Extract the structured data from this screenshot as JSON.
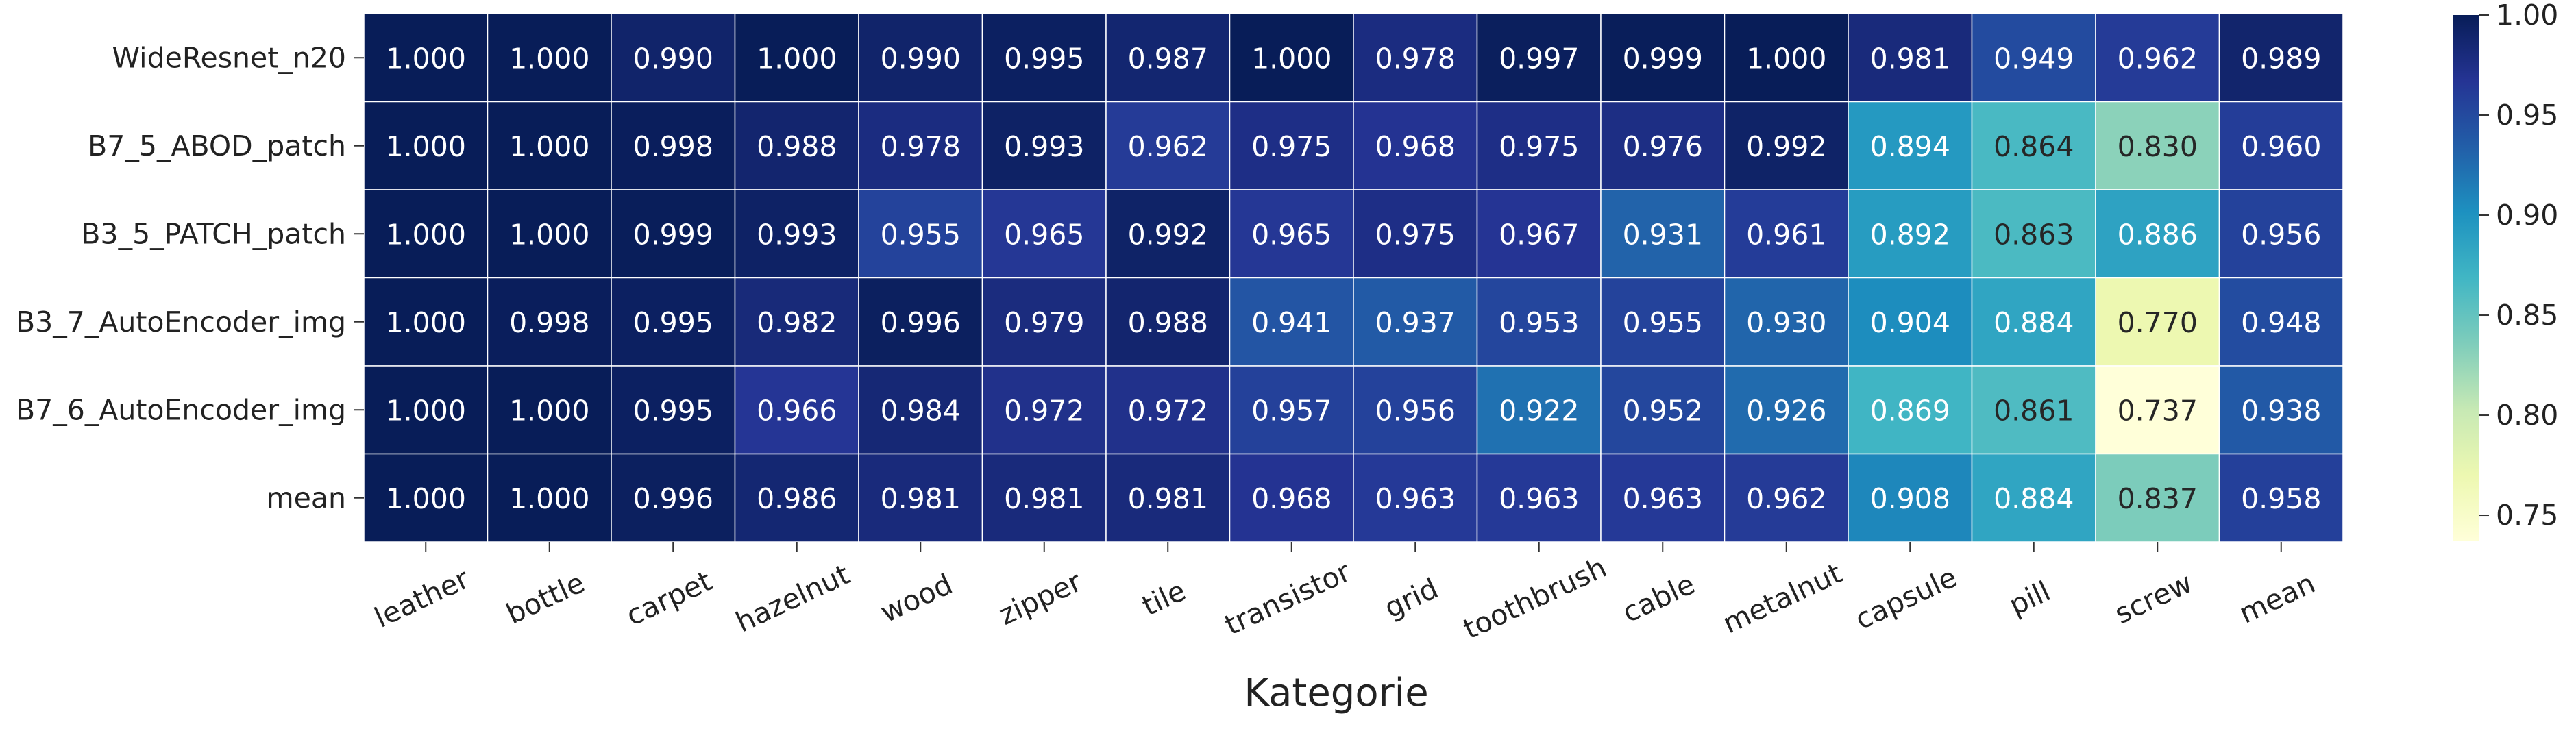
{
  "chart_data": {
    "type": "heatmap",
    "title": "",
    "xlabel": "Kategorie",
    "ylabel": "",
    "columns": [
      "leather",
      "bottle",
      "carpet",
      "hazelnut",
      "wood",
      "zipper",
      "tile",
      "transistor",
      "grid",
      "toothbrush",
      "cable",
      "metalnut",
      "capsule",
      "pill",
      "screw",
      "mean"
    ],
    "rows": [
      "WideResnet_n20",
      "B7_5_ABOD_patch",
      "B3_5_PATCH_patch",
      "B3_7_AutoEncoder_img",
      "B7_6_AutoEncoder_img",
      "mean"
    ],
    "values": [
      [
        1.0,
        1.0,
        0.99,
        1.0,
        0.99,
        0.995,
        0.987,
        1.0,
        0.978,
        0.997,
        0.999,
        1.0,
        0.981,
        0.949,
        0.962,
        0.989
      ],
      [
        1.0,
        1.0,
        0.998,
        0.988,
        0.978,
        0.993,
        0.962,
        0.975,
        0.968,
        0.975,
        0.976,
        0.992,
        0.894,
        0.864,
        0.83,
        0.96
      ],
      [
        1.0,
        1.0,
        0.999,
        0.993,
        0.955,
        0.965,
        0.992,
        0.965,
        0.975,
        0.967,
        0.931,
        0.961,
        0.892,
        0.863,
        0.886,
        0.956
      ],
      [
        1.0,
        0.998,
        0.995,
        0.982,
        0.996,
        0.979,
        0.988,
        0.941,
        0.937,
        0.953,
        0.955,
        0.93,
        0.904,
        0.884,
        0.77,
        0.948
      ],
      [
        1.0,
        1.0,
        0.995,
        0.966,
        0.984,
        0.972,
        0.972,
        0.957,
        0.956,
        0.922,
        0.952,
        0.926,
        0.869,
        0.861,
        0.737,
        0.938
      ],
      [
        1.0,
        1.0,
        0.996,
        0.986,
        0.981,
        0.981,
        0.981,
        0.968,
        0.963,
        0.963,
        0.963,
        0.962,
        0.908,
        0.884,
        0.837,
        0.958
      ]
    ],
    "value_format": "3 decimals",
    "colormap": "YlGnBu",
    "color_range": [
      0.737,
      1.0
    ],
    "colorbar_ticks": [
      "1.00",
      "0.95",
      "0.90",
      "0.85",
      "0.80",
      "0.75"
    ],
    "colorbar_tick_values": [
      1.0,
      0.95,
      0.9,
      0.85,
      0.8,
      0.75
    ],
    "colormap_stops": [
      "#ffffd9",
      "#edf8b1",
      "#c7e9b4",
      "#7fcdbb",
      "#41b6c4",
      "#1d91c0",
      "#225ea8",
      "#253494",
      "#081d58"
    ],
    "grid": true,
    "legend_position": "right"
  }
}
